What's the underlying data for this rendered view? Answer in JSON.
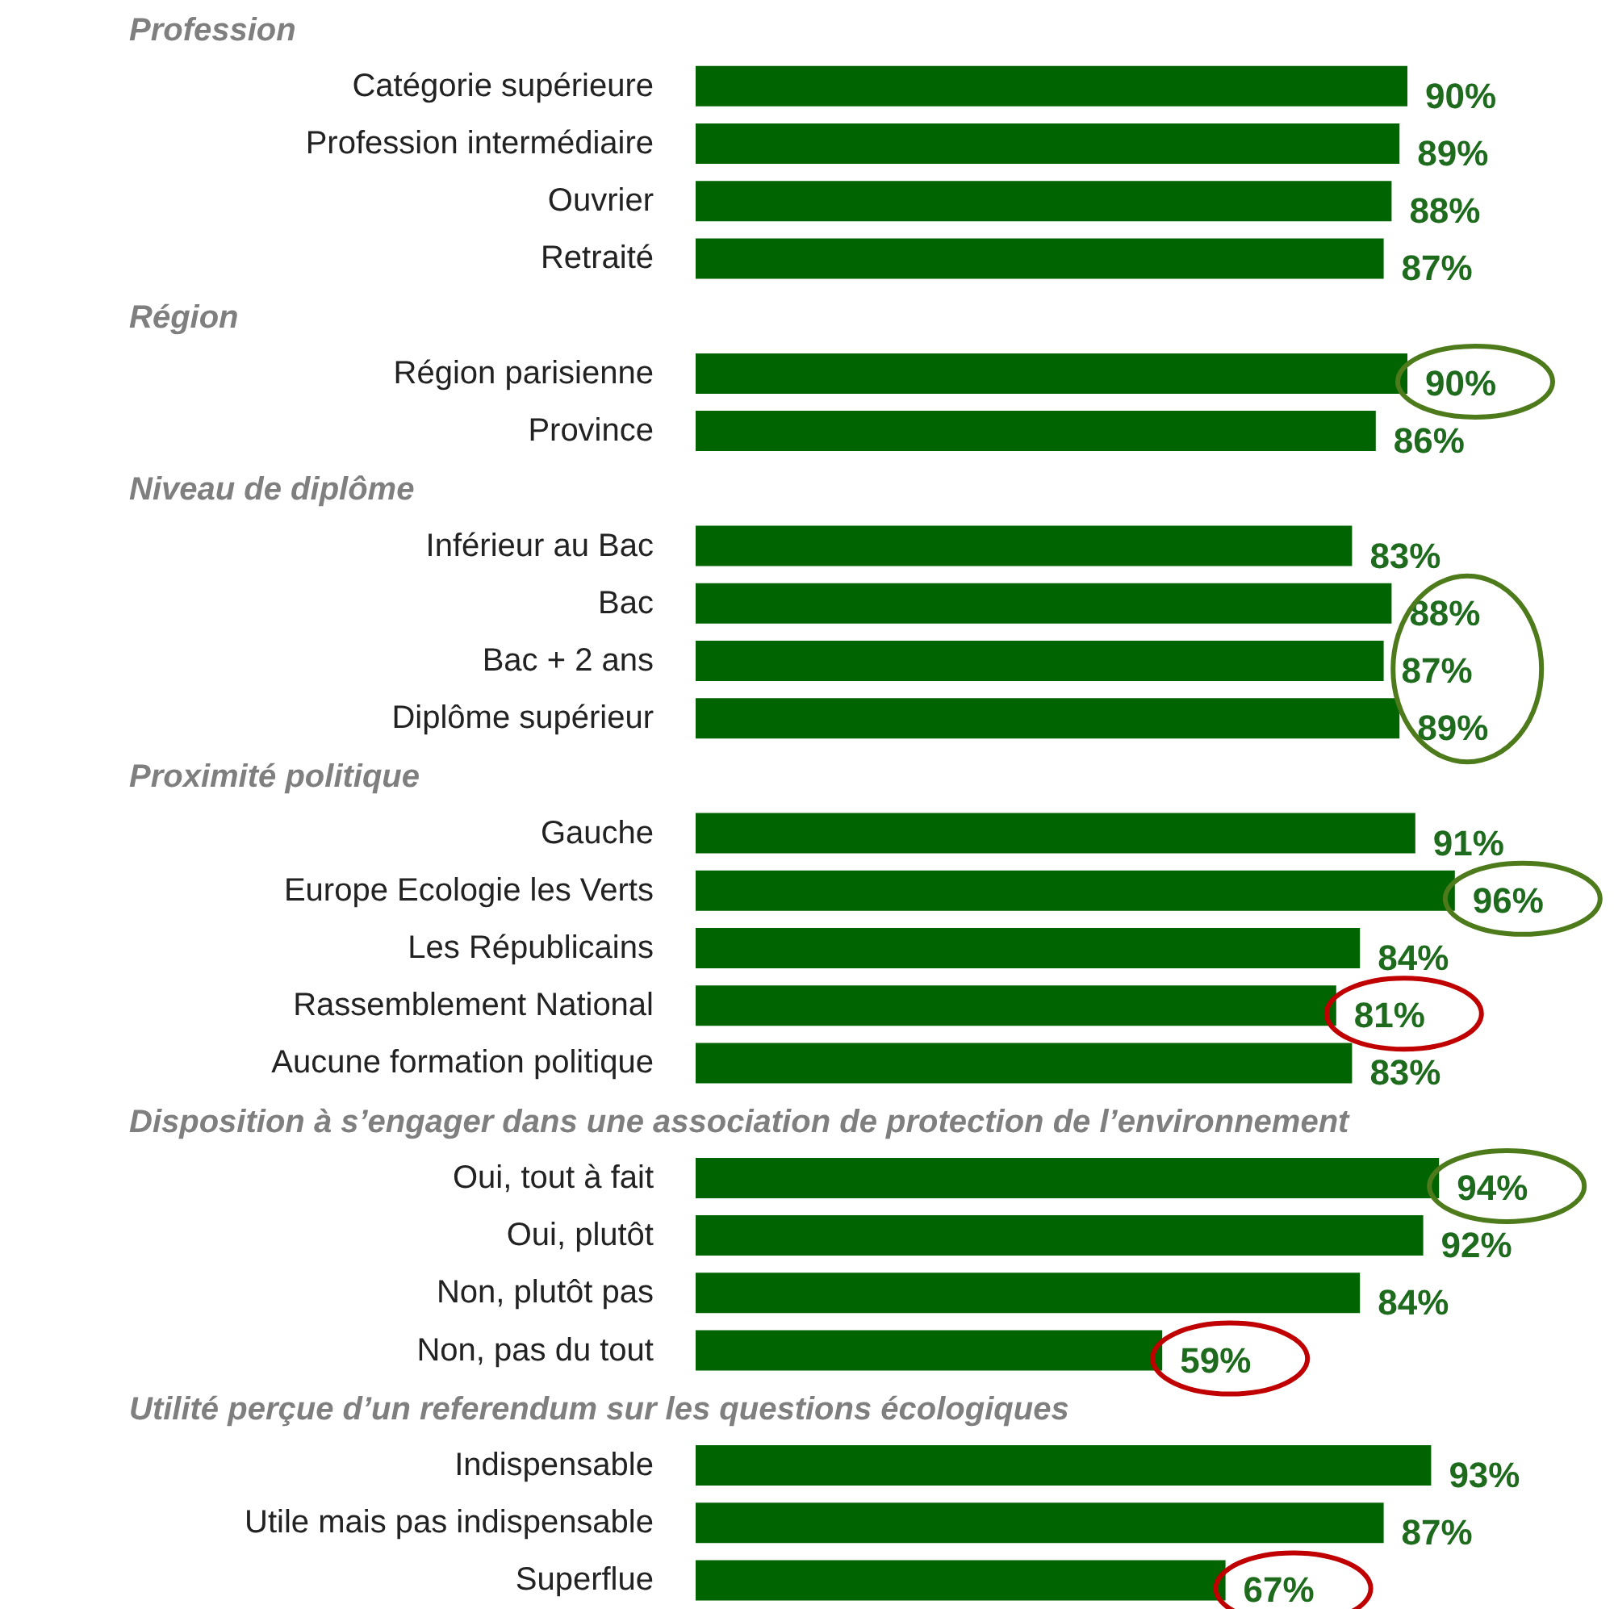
{
  "chart_data": {
    "type": "bar",
    "orientation": "horizontal",
    "color": "#006400",
    "categories": [
      null,
      "Catégorie supérieure",
      "Profession intermédiaire",
      "Ouvrier",
      "Retraité",
      null,
      "Région parisienne",
      "Province",
      null,
      "Inférieur au Bac",
      "Bac",
      "Bac + 2 ans",
      "Diplôme supérieur",
      null,
      "Gauche",
      "Europe Ecologie les Verts",
      "Les Républicains",
      "Rassemblement National",
      "Aucune formation politique",
      null,
      "Oui, tout à fait",
      "Oui, plutôt",
      "Non, plutôt pas",
      "Non, pas du tout",
      null,
      "Indispensable",
      "Utile mais pas indispensable",
      "Superflue"
    ],
    "values": [
      null,
      90,
      89,
      88,
      87,
      null,
      90,
      86,
      null,
      83,
      88,
      87,
      89,
      null,
      91,
      96,
      84,
      81,
      83,
      null,
      94,
      92,
      84,
      59,
      null,
      93,
      87,
      67
    ],
    "value_labels": [
      null,
      "90%",
      "89%",
      "88%",
      "87%",
      null,
      "90%",
      "86%",
      null,
      "83%",
      "88%",
      "87%",
      "89%",
      null,
      "91%",
      "96%",
      "84%",
      "81%",
      "83%",
      null,
      "94%",
      "92%",
      "84%",
      "59%",
      null,
      "93%",
      "87%",
      "67%"
    ],
    "annotations": [
      "Profession",
      "Région",
      "Niveau de diplôme",
      "Proximité politique",
      "Disposition à s’engager dans une association de protection de l’environnement",
      "Utilité perçue d’un referendum sur les questions écologiques"
    ]
  }
}
